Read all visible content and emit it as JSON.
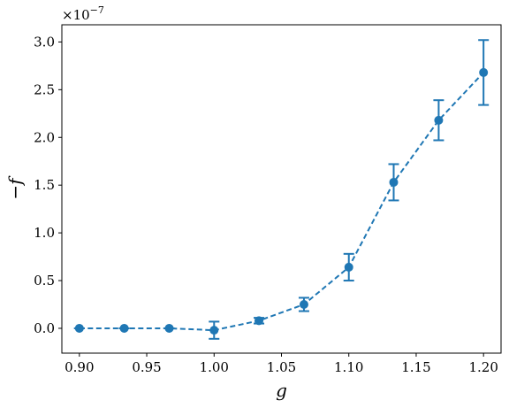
{
  "chart_data": {
    "type": "line",
    "title": "",
    "xlabel": "g",
    "ylabel": "−f",
    "y_offset_text": "×10",
    "y_offset_exponent": "−7",
    "xlim": [
      0.887,
      1.213
    ],
    "ylim": [
      -0.26,
      3.18
    ],
    "x_ticks": [
      0.9,
      0.95,
      1.0,
      1.05,
      1.1,
      1.15,
      1.2
    ],
    "x_tick_labels": [
      "0.90",
      "0.95",
      "1.00",
      "1.05",
      "1.10",
      "1.15",
      "1.20"
    ],
    "y_ticks": [
      0.0,
      0.5,
      1.0,
      1.5,
      2.0,
      2.5,
      3.0
    ],
    "y_tick_labels": [
      "0.0",
      "0.5",
      "1.0",
      "1.5",
      "2.0",
      "2.5",
      "3.0"
    ],
    "grid": false,
    "legend": "none",
    "series": [
      {
        "color": "#1f77b4",
        "linestyle": "dashed",
        "marker": "circle",
        "x": [
          0.9,
          0.9333,
          0.9667,
          1.0,
          1.0333,
          1.0667,
          1.1,
          1.1333,
          1.1667,
          1.2
        ],
        "y": [
          0.0,
          0.0,
          0.0,
          -0.02,
          0.08,
          0.25,
          0.64,
          1.53,
          2.18,
          2.68
        ],
        "yerr": [
          0.0,
          0.0,
          0.0,
          0.09,
          0.03,
          0.07,
          0.14,
          0.19,
          0.21,
          0.34
        ]
      }
    ]
  }
}
